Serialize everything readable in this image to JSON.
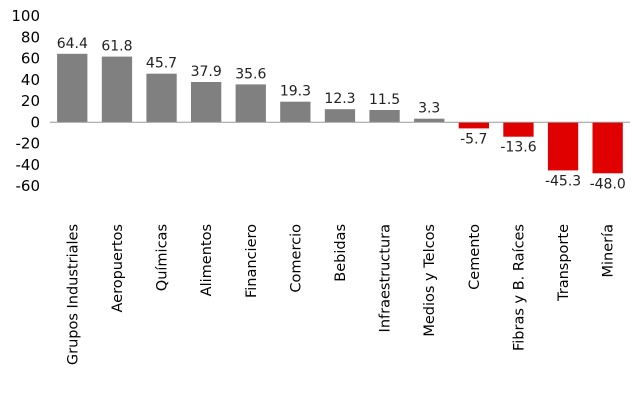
{
  "chart_data": {
    "type": "bar",
    "categories": [
      "Grupos Industriales",
      "Aeropuertos",
      "Químicas",
      "Alimentos",
      "Financiero",
      "Comercio",
      "Bebidas",
      "Infraestructura",
      "Medios y Telcos",
      "Cemento",
      "Fibras y B. Raíces",
      "Transporte",
      "Minería"
    ],
    "values": [
      64.4,
      61.8,
      45.7,
      37.9,
      35.6,
      19.3,
      12.3,
      11.5,
      3.3,
      -5.7,
      -13.6,
      -45.3,
      -48.0
    ],
    "data_labels": [
      "64.4",
      "61.8",
      "45.7",
      "37.9",
      "35.6",
      "19.3",
      "12.3",
      "11.5",
      "3.3",
      "-5.7",
      "-13.6",
      "-45.3",
      "-48.0"
    ],
    "y_ticks": [
      100,
      80,
      60,
      40,
      20,
      0,
      -20,
      -40,
      -60
    ],
    "ylim": [
      -60,
      100
    ],
    "grid": false,
    "legend": "none",
    "title": "",
    "xlabel": "",
    "ylabel": "",
    "colors": {
      "positive": "#808080",
      "negative": "#e00000",
      "axis": "#999999"
    }
  }
}
